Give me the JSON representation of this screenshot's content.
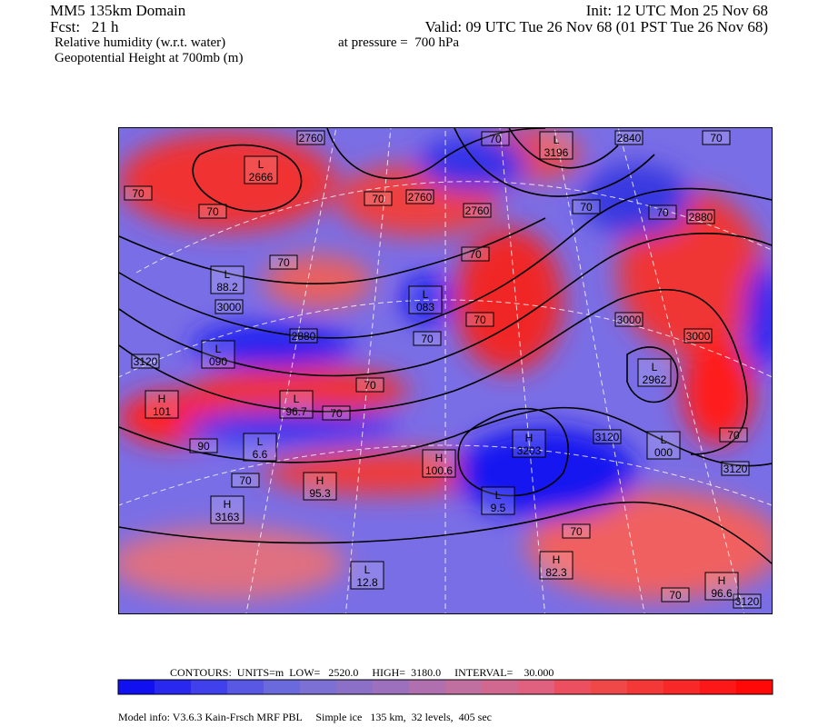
{
  "header": {
    "domain": "MM5 135km Domain",
    "fcst": "Fcst:   21 h",
    "field1": "Relative humidity (w.r.t. water)",
    "field2": "Geopotential Height at 700mb (m)",
    "init": "Init: 12 UTC Mon 25 Nov 68",
    "valid": "Valid: 09 UTC Tue 26 Nov 68 (01 PST Tue 26 Nov 68)",
    "pressure": "at pressure =  700 hPa"
  },
  "map": {
    "contour_labels": [
      "2760",
      "70",
      "70",
      "70",
      "2760",
      "2760",
      "70",
      "2840",
      "70",
      "2880",
      "70",
      "70",
      "3000",
      "70",
      "70",
      "70",
      "2880",
      "70",
      "3120",
      "70",
      "70",
      "3000",
      "3000",
      "3120",
      "70",
      "3120",
      "90",
      "70",
      "70",
      "70",
      "3120"
    ],
    "centers": [
      {
        "type": "L",
        "value": "2666"
      },
      {
        "type": "L",
        "value": "3196"
      },
      {
        "type": "L",
        "value": "88.2"
      },
      {
        "type": "L",
        "value": "083"
      },
      {
        "type": "L",
        "value": "090"
      },
      {
        "type": "L",
        "value": "96.7"
      },
      {
        "type": "L",
        "value": "2962"
      },
      {
        "type": "H",
        "value": "3203"
      },
      {
        "type": "L",
        "value": "000"
      },
      {
        "type": "H",
        "value": "101"
      },
      {
        "type": "L",
        "value": "6.6"
      },
      {
        "type": "H",
        "value": "100.6"
      },
      {
        "type": "H",
        "value": "95.3"
      },
      {
        "type": "L",
        "value": "9.5"
      },
      {
        "type": "H",
        "value": "3163"
      },
      {
        "type": "H",
        "value": "82.3"
      },
      {
        "type": "L",
        "value": "12.8"
      },
      {
        "type": "H",
        "value": "96.6"
      }
    ]
  },
  "footer": {
    "contours": "CONTOURS:  UNITS=m  LOW=   2520.0     HIGH=  3180.0     INTERVAL=    30.000",
    "model_info": "Model info: V3.6.3 Kain-Frsch MRF PBL     Simple ice   135 km,  32 levels,  405 sec"
  }
}
